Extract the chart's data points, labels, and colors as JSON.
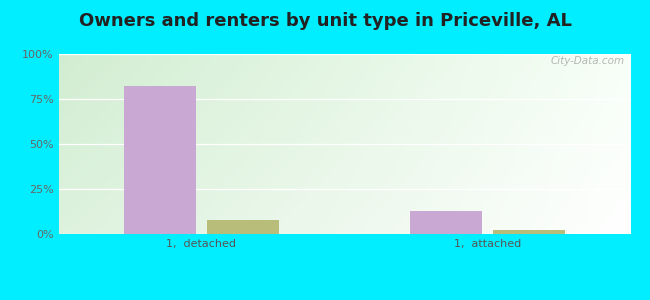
{
  "title": "Owners and renters by unit type in Priceville, AL",
  "categories": [
    "1,  detached",
    "1,  attached"
  ],
  "owner_values": [
    82,
    13
  ],
  "renter_values": [
    8,
    2
  ],
  "owner_color": "#c9a8d4",
  "renter_color": "#b8be7a",
  "bar_width": 0.25,
  "ylim": [
    0,
    100
  ],
  "yticks": [
    0,
    25,
    50,
    75,
    100
  ],
  "ytick_labels": [
    "0%",
    "25%",
    "50%",
    "75%",
    "100%"
  ],
  "outer_bg": "#00eeff",
  "watermark": "City-Data.com",
  "title_fontsize": 13,
  "tick_fontsize": 8,
  "legend_fontsize": 9,
  "bg_color_topleft": "#cce8cc",
  "bg_color_topright": "#f0f8f0",
  "bg_color_bottomleft": "#d8edd8",
  "bg_color_bottomright": "#ffffff"
}
